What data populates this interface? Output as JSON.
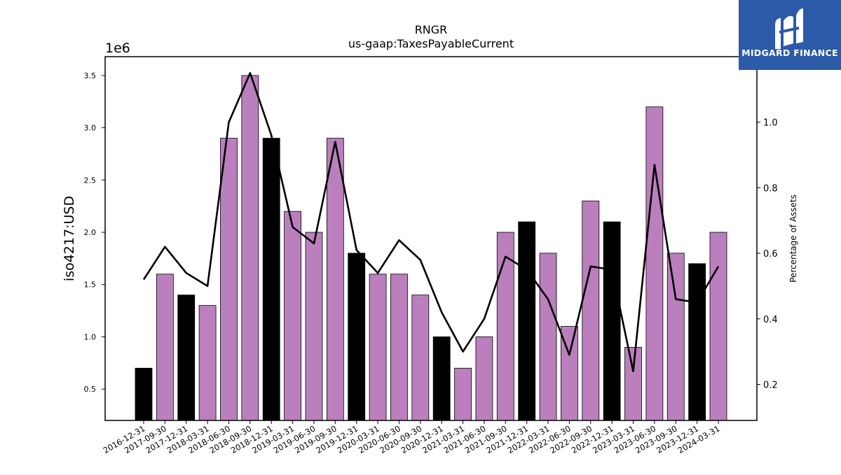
{
  "chart_data": {
    "type": "bar",
    "title": "RNGR",
    "subtitle": "us-gaap:TaxesPayableCurrent",
    "ylabel": "iso4217:USD",
    "y_multiplier": "1e6",
    "y2label": "Percentage of Assets",
    "categories": [
      "2016-12-31",
      "2017-09-30",
      "2017-12-31",
      "2018-03-31",
      "2018-06-30",
      "2018-09-30",
      "2018-12-31",
      "2019-03-31",
      "2019-06-30",
      "2019-09-30",
      "2019-12-31",
      "2020-03-31",
      "2020-06-30",
      "2020-09-30",
      "2020-12-31",
      "2021-03-31",
      "2021-06-30",
      "2021-09-30",
      "2021-12-31",
      "2022-03-31",
      "2022-06-30",
      "2022-09-30",
      "2022-12-31",
      "2023-03-31",
      "2023-06-30",
      "2023-09-30",
      "2023-12-31",
      "2024-03-31"
    ],
    "values": [
      0.7,
      1.6,
      1.4,
      1.3,
      2.9,
      3.5,
      2.9,
      2.2,
      2.0,
      2.9,
      1.8,
      1.6,
      1.6,
      1.4,
      1.0,
      0.7,
      1.0,
      2.0,
      2.1,
      1.8,
      1.1,
      2.3,
      2.1,
      0.9,
      3.2,
      1.8,
      1.7,
      2.0
    ],
    "bar_colors": [
      "#000000",
      "#bb7fbd",
      "#000000",
      "#bb7fbd",
      "#bb7fbd",
      "#bb7fbd",
      "#000000",
      "#bb7fbd",
      "#bb7fbd",
      "#bb7fbd",
      "#000000",
      "#bb7fbd",
      "#bb7fbd",
      "#bb7fbd",
      "#000000",
      "#bb7fbd",
      "#bb7fbd",
      "#bb7fbd",
      "#000000",
      "#bb7fbd",
      "#bb7fbd",
      "#bb7fbd",
      "#000000",
      "#bb7fbd",
      "#bb7fbd",
      "#bb7fbd",
      "#000000",
      "#bb7fbd"
    ],
    "line_values": [
      0.52,
      0.62,
      0.54,
      0.5,
      1.0,
      1.15,
      0.96,
      0.68,
      0.63,
      0.94,
      0.61,
      0.54,
      0.64,
      0.58,
      0.42,
      0.3,
      0.4,
      0.59,
      0.55,
      0.46,
      0.29,
      0.56,
      0.55,
      0.24,
      0.87,
      0.46,
      0.45,
      0.56
    ],
    "line_color": "#000000",
    "ylim": [
      0.2,
      3.68
    ],
    "yticks": [
      "0.5",
      "1.0",
      "1.5",
      "2.0",
      "2.5",
      "3.0",
      "3.5"
    ],
    "y2lim": [
      0.09,
      1.2
    ],
    "y2ticks": [
      "0.2",
      "0.4",
      "0.6",
      "0.8",
      "1.0"
    ],
    "grid": false,
    "legend": "none"
  },
  "logo": {
    "text": "MIDGARD FINANCE",
    "color": "#2b5aa8"
  }
}
